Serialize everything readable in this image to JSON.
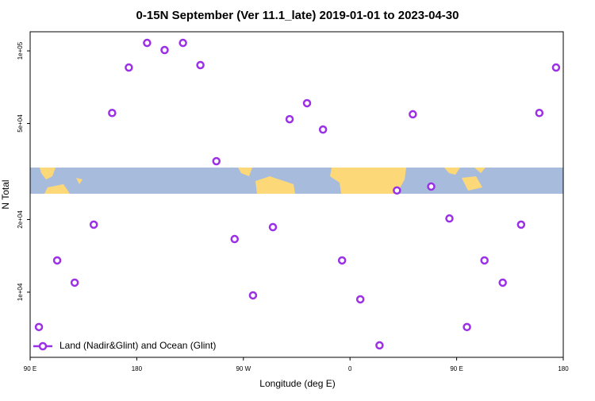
{
  "chart_data": {
    "type": "scatter",
    "title": "0-15N September (Ver 11.1_late)   2019-01-01 to 2023-04-30",
    "xlabel": "Longitude (deg E)",
    "ylabel": "N Total",
    "xlim": [
      90,
      540
    ],
    "xticks": [
      {
        "value": 90,
        "label": "90 E"
      },
      {
        "value": 180,
        "label": "180"
      },
      {
        "value": 270,
        "label": "90 W"
      },
      {
        "value": 360,
        "label": "0"
      },
      {
        "value": 450,
        "label": "90 E"
      },
      {
        "value": 540,
        "label": "180"
      }
    ],
    "ylim": [
      5370,
      120000
    ],
    "ylog": true,
    "yticks": [
      {
        "value": 10000,
        "label": "1e+04"
      },
      {
        "value": 20000,
        "label": "2e+04"
      },
      {
        "value": 50000,
        "label": "5e+04"
      },
      {
        "value": 100000,
        "label": "1e+05"
      }
    ],
    "legend": "lower left",
    "series": [
      {
        "name": "Land (Nadir&Glint) and Ocean (Glint)",
        "color": "#9b30e6",
        "x": [
          97.4,
          112.8,
          127.6,
          143.7,
          159.2,
          173.3,
          188.7,
          203.5,
          219,
          233.7,
          247.2,
          262.6,
          278.1,
          294.9,
          309,
          323.7,
          337.2,
          353.3,
          368.7,
          384.9,
          399.6,
          413,
          428.5,
          443.9,
          458.7,
          473.5,
          488.9,
          504.4,
          519.8,
          533.9
        ],
        "values": [
          7170,
          13540,
          10950,
          19050,
          55300,
          85300,
          107900,
          100800,
          107900,
          87300,
          34900,
          16600,
          9700,
          18600,
          52100,
          60700,
          47200,
          13540,
          9340,
          6020,
          26400,
          54600,
          27400,
          20200,
          7170,
          13540,
          10950,
          19050,
          55300,
          85300
        ]
      }
    ]
  }
}
